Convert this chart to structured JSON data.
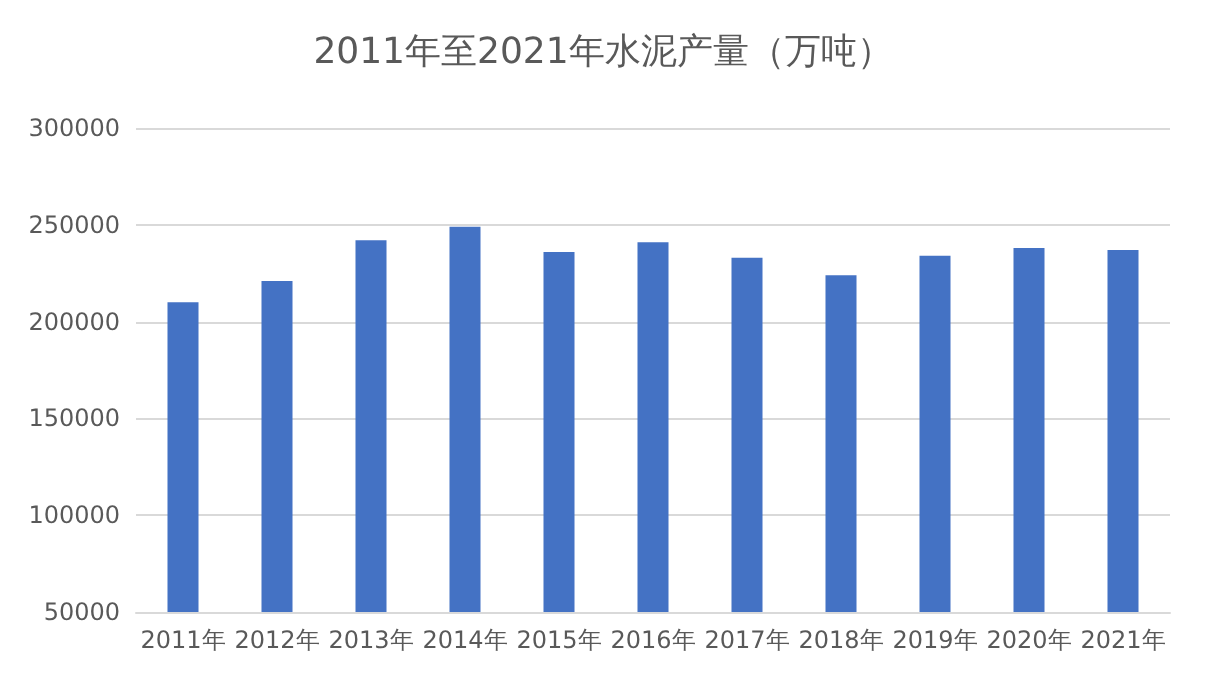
{
  "chart_data": {
    "type": "bar",
    "title": "2011年至2021年水泥产量（万吨）",
    "categories": [
      "2011年",
      "2012年",
      "2013年",
      "2014年",
      "2015年",
      "2016年",
      "2017年",
      "2018年",
      "2019年",
      "2020年",
      "2021年"
    ],
    "values": [
      210000,
      221000,
      242000,
      249000,
      236000,
      241000,
      233000,
      224000,
      234000,
      238000,
      237000
    ],
    "color": "#4472c4",
    "ylim": [
      50000,
      300000
    ],
    "yticks": [
      50000,
      100000,
      150000,
      200000,
      250000,
      300000
    ],
    "grid": "y"
  }
}
